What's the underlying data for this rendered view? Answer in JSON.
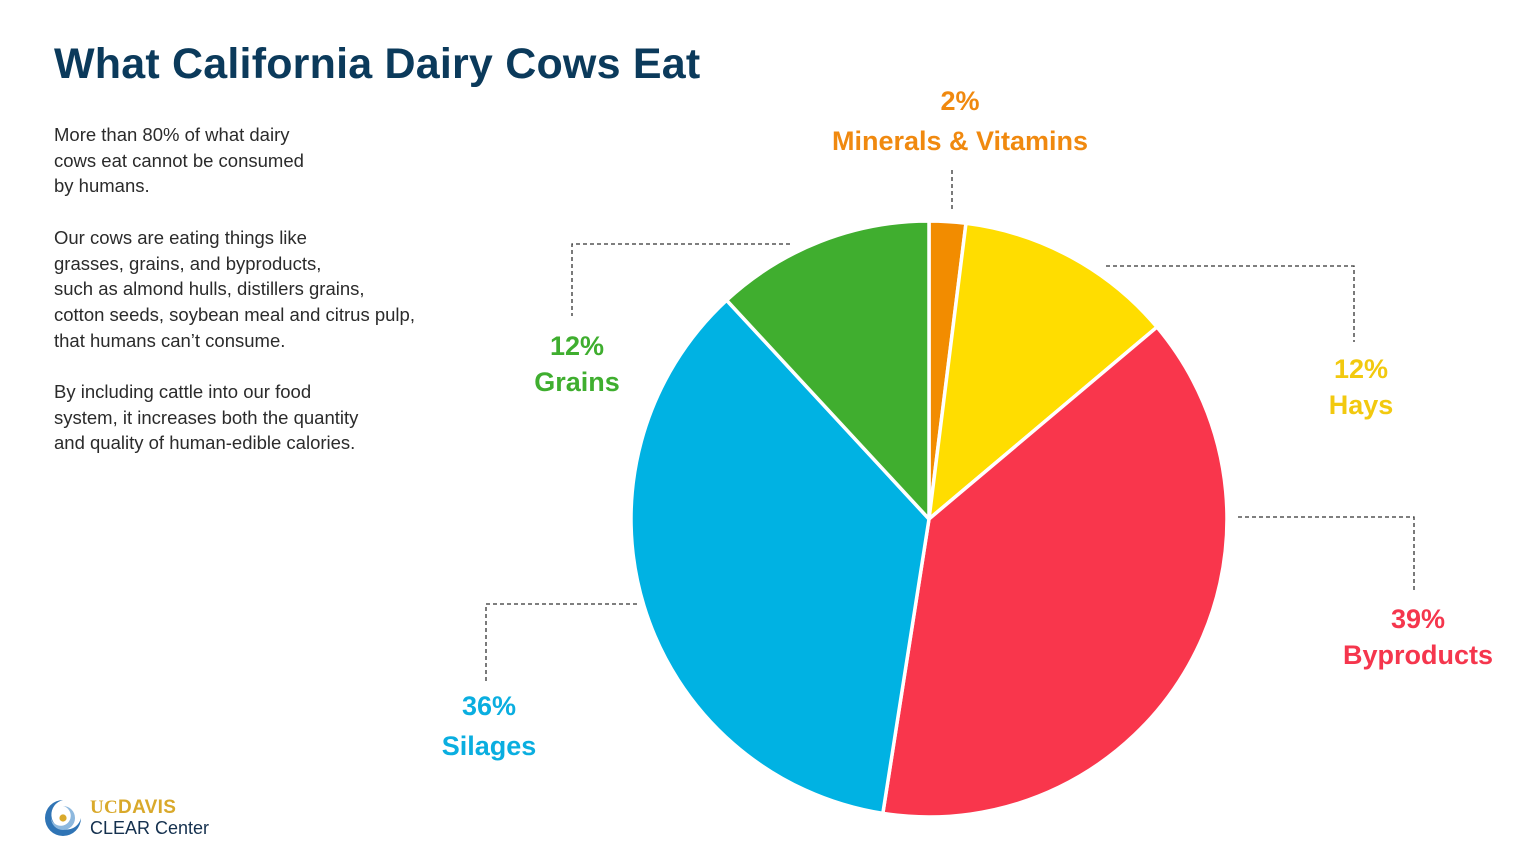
{
  "title": "What California Dairy Cows Eat",
  "description": [
    "More than 80% of what dairy\ncows eat cannot be consumed\nby humans.",
    "Our cows are eating things like\ngrasses, grains, and byproducts,\nsuch as almond hulls, distillers grains,\ncotton seeds, soybean meal and citrus pulp,\nthat humans can’t consume.",
    "By including cattle into our food\nsystem, it increases both the quantity\nand quality of human-edible calories."
  ],
  "labels": {
    "minerals": {
      "pct": "2%",
      "name": "Minerals & Vitamins",
      "color": "#f0890f"
    },
    "hays": {
      "pct": "12%",
      "name": "Hays",
      "color": "#f2c90f"
    },
    "byproducts": {
      "pct": "39%",
      "name": "Byproducts",
      "color": "#f5364d"
    },
    "silages": {
      "pct": "36%",
      "name": "Silages",
      "color": "#0aaee0"
    },
    "grains": {
      "pct": "12%",
      "name": "Grains",
      "color": "#3fae2f"
    }
  },
  "logo": {
    "uc": "UC",
    "davis": "DAVIS",
    "center": "CLEAR Center"
  },
  "chart_data": {
    "type": "pie",
    "title": "What California Dairy Cows Eat",
    "categories": [
      "Minerals & Vitamins",
      "Hays",
      "Byproducts",
      "Silages",
      "Grains"
    ],
    "values": [
      2,
      12,
      39,
      36,
      12
    ],
    "unit": "%",
    "colors": [
      "#f28c00",
      "#ffdd00",
      "#f9364c",
      "#00b2e3",
      "#40ae2f"
    ],
    "start_angle": "12 o'clock",
    "direction": "clockwise",
    "legend": "none (callout labels with dashed leader lines)"
  }
}
